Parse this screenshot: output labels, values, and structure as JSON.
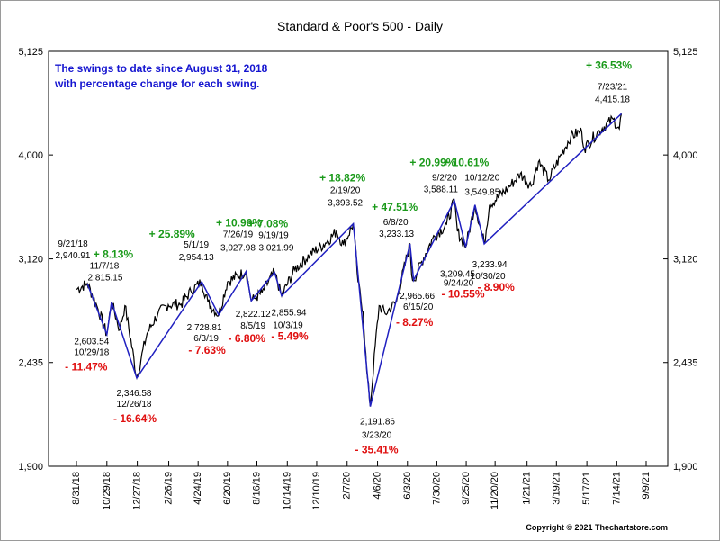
{
  "chart_data": {
    "type": "line",
    "title": "Standard & Poor's 500 - Daily",
    "note_lines": [
      "The swings to date since August 31, 2018",
      "with percentage change for each swing."
    ],
    "copyright": "Copyright © 2021 Thechartstore.com",
    "y_ticks": [
      "5,125",
      "4,000",
      "3,120",
      "2,435",
      "1,900"
    ],
    "y_tick_values": [
      5125,
      4000,
      3120,
      2435,
      1900
    ],
    "ylim": [
      1900,
      5125
    ],
    "log_scale": true,
    "x_ticks": [
      "8/31/18",
      "10/29/18",
      "12/27/18",
      "2/26/19",
      "4/24/19",
      "6/20/19",
      "8/16/19",
      "10/14/19",
      "12/10/19",
      "2/7/20",
      "4/6/20",
      "6/3/20",
      "7/30/20",
      "9/25/20",
      "11/20/20",
      "1/21/21",
      "3/19/21",
      "5/17/21",
      "7/14/21",
      "9/9/21"
    ],
    "x_range": [
      "8/31/18",
      "9/9/21"
    ],
    "series": [
      {
        "type": "price",
        "color": "#000000",
        "x": [
          "2018-08-31",
          "2018-09-21",
          "2018-10-10",
          "2018-10-29",
          "2018-11-07",
          "2018-11-23",
          "2018-12-03",
          "2018-12-26",
          "2019-01-15",
          "2019-02-05",
          "2019-02-25",
          "2019-03-22",
          "2019-04-10",
          "2019-05-01",
          "2019-05-13",
          "2019-06-03",
          "2019-06-20",
          "2019-07-26",
          "2019-08-05",
          "2019-08-15",
          "2019-08-26",
          "2019-09-19",
          "2019-10-03",
          "2019-10-28",
          "2019-11-27",
          "2019-12-27",
          "2020-01-17",
          "2020-01-31",
          "2020-02-19",
          "2020-02-28",
          "2020-03-09",
          "2020-03-16",
          "2020-03-23",
          "2020-04-09",
          "2020-04-21",
          "2020-05-13",
          "2020-06-08",
          "2020-06-11",
          "2020-06-15",
          "2020-07-22",
          "2020-08-18",
          "2020-09-02",
          "2020-09-08",
          "2020-09-24",
          "2020-10-12",
          "2020-10-30",
          "2020-11-09",
          "2020-12-15",
          "2021-01-08",
          "2021-01-29",
          "2021-02-12",
          "2021-03-04",
          "2021-04-16",
          "2021-05-07",
          "2021-05-12",
          "2021-06-10",
          "2021-07-07",
          "2021-07-19",
          "2021-07-23"
        ],
        "values": [
          2901,
          2941,
          2785,
          2604,
          2815,
          2632,
          2790,
          2347,
          2610,
          2737,
          2796,
          2800,
          2888,
          2954,
          2812,
          2729,
          2954,
          3028,
          2822,
          2848,
          2878,
          3022,
          2856,
          3039,
          3153,
          3240,
          3330,
          3226,
          3394,
          2954,
          2747,
          2386,
          2192,
          2790,
          2736,
          2820,
          3233,
          3002,
          2966,
          3276,
          3390,
          3588,
          3332,
          3209,
          3550,
          3234,
          3551,
          3694,
          3824,
          3714,
          3935,
          3768,
          4185,
          4232,
          4063,
          4240,
          4358,
          4258,
          4415
        ]
      },
      {
        "type": "swing",
        "color": "#2020c0",
        "x": [
          "2018-09-21",
          "2018-10-29",
          "2018-11-07",
          "2018-12-26",
          "2019-05-01",
          "2019-06-03",
          "2019-07-26",
          "2019-08-05",
          "2019-09-19",
          "2019-10-03",
          "2020-02-19",
          "2020-03-23",
          "2020-06-08",
          "2020-06-15",
          "2020-09-02",
          "2020-09-24",
          "2020-10-12",
          "2020-10-30",
          "2021-07-23"
        ],
        "values": [
          2940.91,
          2603.54,
          2815.15,
          2346.58,
          2954.13,
          2728.81,
          3027.98,
          2822.12,
          3021.99,
          2855.94,
          3393.52,
          2191.86,
          3233.13,
          2965.66,
          3588.11,
          3209.45,
          3549.85,
          3233.94,
          4415.18
        ]
      }
    ],
    "annotations": [
      {
        "x": "2018-09-21",
        "value": 2940.91,
        "date_label": "9/21/18",
        "value_label": "2,940.91",
        "pct": "",
        "kind": "peak"
      },
      {
        "x": "2018-10-29",
        "value": 2603.54,
        "date_label": "10/29/18",
        "value_label": "2,603.54",
        "pct": "- 11.47%",
        "kind": "trough"
      },
      {
        "x": "2018-11-07",
        "value": 2815.15,
        "date_label": "11/7/18",
        "value_label": "2,815.15",
        "pct": "+ 8.13%",
        "kind": "peak"
      },
      {
        "x": "2018-12-26",
        "value": 2346.58,
        "date_label": "12/26/18",
        "value_label": "2,346.58",
        "pct": "- 16.64%",
        "kind": "trough"
      },
      {
        "x": "2019-05-01",
        "value": 2954.13,
        "date_label": "5/1/19",
        "value_label": "2,954.13",
        "pct": "+ 25.89%",
        "kind": "peak"
      },
      {
        "x": "2019-06-03",
        "value": 2728.81,
        "date_label": "6/3/19",
        "value_label": "2,728.81",
        "pct": "- 7.63%",
        "kind": "trough"
      },
      {
        "x": "2019-07-26",
        "value": 3027.98,
        "date_label": "7/26/19",
        "value_label": "3,027.98",
        "pct": "+ 10.96%",
        "kind": "peak"
      },
      {
        "x": "2019-08-05",
        "value": 2822.12,
        "date_label": "8/5/19",
        "value_label": "2,822.12",
        "pct": "- 6.80%",
        "kind": "trough"
      },
      {
        "x": "2019-09-19",
        "value": 3021.99,
        "date_label": "9/19/19",
        "value_label": "3,021.99",
        "pct": "+ 7.08%",
        "kind": "peak"
      },
      {
        "x": "2019-10-03",
        "value": 2855.94,
        "date_label": "10/3/19",
        "value_label": "2,855.94",
        "pct": "- 5.49%",
        "kind": "trough"
      },
      {
        "x": "2020-02-19",
        "value": 3393.52,
        "date_label": "2/19/20",
        "value_label": "3,393.52",
        "pct": "+ 18.82%",
        "kind": "peak"
      },
      {
        "x": "2020-03-23",
        "value": 2191.86,
        "date_label": "3/23/20",
        "value_label": "2,191.86",
        "pct": "- 35.41%",
        "kind": "trough"
      },
      {
        "x": "2020-06-08",
        "value": 3233.13,
        "date_label": "6/8/20",
        "value_label": "3,233.13",
        "pct": "+ 47.51%",
        "kind": "peak"
      },
      {
        "x": "2020-06-15",
        "value": 2965.66,
        "date_label": "6/15/20",
        "value_label": "2,965.66",
        "pct": "- 8.27%",
        "kind": "trough"
      },
      {
        "x": "2020-09-02",
        "value": 3588.11,
        "date_label": "9/2/20",
        "value_label": "3,588.11",
        "pct": "+ 20.99%",
        "kind": "peak"
      },
      {
        "x": "2020-09-24",
        "value": 3209.45,
        "date_label": "9/24/20",
        "value_label": "3,209.45",
        "pct": "- 10.55%",
        "kind": "trough"
      },
      {
        "x": "2020-10-12",
        "value": 3549.85,
        "date_label": "10/12/20",
        "value_label": "3,549.85",
        "pct": "+ 10.61%",
        "kind": "peak"
      },
      {
        "x": "2020-10-30",
        "value": 3233.94,
        "date_label": "10/30/20",
        "value_label": "3,233.94",
        "pct": "- 8.90%",
        "kind": "trough"
      },
      {
        "x": "2021-07-23",
        "value": 4415.18,
        "date_label": "7/23/21",
        "value_label": "4,415.18",
        "pct": "+ 36.53%",
        "kind": "peak"
      }
    ],
    "grid": false
  }
}
